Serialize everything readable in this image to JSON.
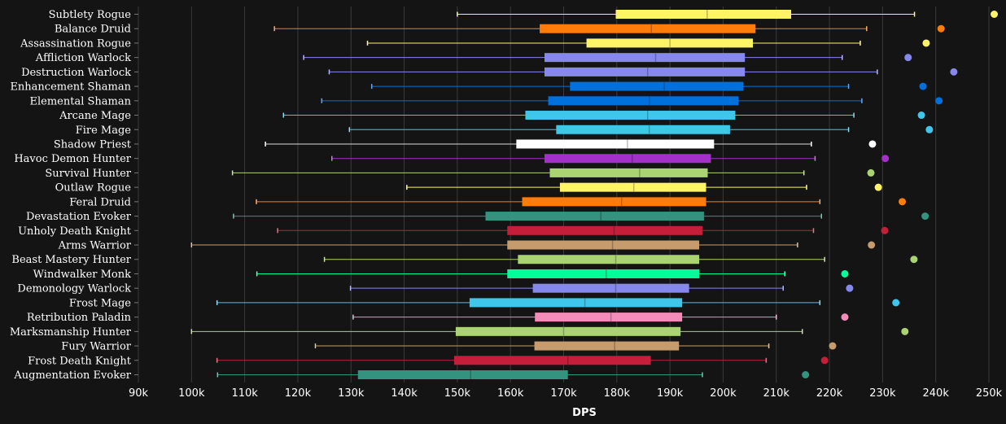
{
  "chart_data": {
    "type": "box",
    "xlabel": "DPS",
    "xlim": [
      90000,
      250000
    ],
    "x_ticks": [
      90000,
      100000,
      110000,
      120000,
      130000,
      140000,
      150000,
      160000,
      170000,
      180000,
      190000,
      200000,
      210000,
      220000,
      230000,
      240000,
      250000
    ],
    "x_tick_labels": [
      "90k",
      "100k",
      "110k",
      "120k",
      "130k",
      "140k",
      "150k",
      "160k",
      "170k",
      "180k",
      "190k",
      "200k",
      "210k",
      "220k",
      "230k",
      "240k",
      "250k"
    ],
    "grid": true,
    "series": [
      {
        "name": "Subtlety Rogue",
        "color": "#FFF468",
        "whisker_low": 150000,
        "q1": 179800,
        "median": 197000,
        "q3": 212800,
        "whisker_high": 236000,
        "outlier": 251000
      },
      {
        "name": "Balance Druid",
        "color": "#FF7C0A",
        "whisker_low": 115600,
        "q1": 165500,
        "median": 186500,
        "q3": 206100,
        "whisker_high": 227000,
        "outlier": 241000
      },
      {
        "name": "Assassination Rogue",
        "color": "#FFF468",
        "whisker_low": 133100,
        "q1": 174300,
        "median": 190000,
        "q3": 205600,
        "whisker_high": 225800,
        "outlier": 238200
      },
      {
        "name": "Affliction Warlock",
        "color": "#8788EE",
        "whisker_low": 121100,
        "q1": 166400,
        "median": 187300,
        "q3": 204100,
        "whisker_high": 222400,
        "outlier": 234800
      },
      {
        "name": "Destruction Warlock",
        "color": "#8788EE",
        "whisker_low": 125900,
        "q1": 166400,
        "median": 185800,
        "q3": 204100,
        "whisker_high": 229000,
        "outlier": 243400
      },
      {
        "name": "Enhancement Shaman",
        "color": "#0070DD",
        "whisker_low": 133900,
        "q1": 171200,
        "median": 188900,
        "q3": 203800,
        "whisker_high": 223600,
        "outlier": 237600
      },
      {
        "name": "Elemental Shaman",
        "color": "#0070DD",
        "whisker_low": 124500,
        "q1": 167100,
        "median": 186100,
        "q3": 202900,
        "whisker_high": 226100,
        "outlier": 240600
      },
      {
        "name": "Arcane Mage",
        "color": "#3FC7EB",
        "whisker_low": 117300,
        "q1": 162800,
        "median": 185800,
        "q3": 202300,
        "whisker_high": 224600,
        "outlier": 237300
      },
      {
        "name": "Fire Mage",
        "color": "#3FC7EB",
        "whisker_low": 129700,
        "q1": 168600,
        "median": 186100,
        "q3": 201300,
        "whisker_high": 223600,
        "outlier": 238800
      },
      {
        "name": "Shadow Priest",
        "color": "#FFFFFF",
        "whisker_low": 113900,
        "q1": 161100,
        "median": 182000,
        "q3": 198300,
        "whisker_high": 216600,
        "outlier": 228100
      },
      {
        "name": "Havoc Demon Hunter",
        "color": "#A330C9",
        "whisker_low": 126400,
        "q1": 166400,
        "median": 182900,
        "q3": 197700,
        "whisker_high": 217300,
        "outlier": 230500
      },
      {
        "name": "Survival Hunter",
        "color": "#AAD372",
        "whisker_low": 107700,
        "q1": 167400,
        "median": 184300,
        "q3": 197100,
        "whisker_high": 215200,
        "outlier": 227800
      },
      {
        "name": "Outlaw Rogue",
        "color": "#FFF468",
        "whisker_low": 140500,
        "q1": 169300,
        "median": 183200,
        "q3": 196800,
        "whisker_high": 215700,
        "outlier": 229200
      },
      {
        "name": "Feral Druid",
        "color": "#FF7C0A",
        "whisker_low": 112200,
        "q1": 162200,
        "median": 180900,
        "q3": 196800,
        "whisker_high": 218200,
        "outlier": 233700
      },
      {
        "name": "Devastation Evoker",
        "color": "#33937F",
        "whisker_low": 107900,
        "q1": 155300,
        "median": 177000,
        "q3": 196400,
        "whisker_high": 218500,
        "outlier": 238000
      },
      {
        "name": "Unholy Death Knight",
        "color": "#C41E3A",
        "whisker_low": 116200,
        "q1": 159400,
        "median": 179500,
        "q3": 196100,
        "whisker_high": 217000,
        "outlier": 230400
      },
      {
        "name": "Arms Warrior",
        "color": "#C69B6D",
        "whisker_low": 100000,
        "q1": 159400,
        "median": 179200,
        "q3": 195500,
        "whisker_high": 214000,
        "outlier": 227900
      },
      {
        "name": "Beast Mastery Hunter",
        "color": "#AAD372",
        "whisker_low": 125000,
        "q1": 161400,
        "median": 179800,
        "q3": 195500,
        "whisker_high": 219100,
        "outlier": 235900
      },
      {
        "name": "Windwalker Monk",
        "color": "#00FF98",
        "whisker_low": 112300,
        "q1": 159400,
        "median": 178000,
        "q3": 195500,
        "whisker_high": 211600,
        "outlier": 222900
      },
      {
        "name": "Demonology Warlock",
        "color": "#8788EE",
        "whisker_low": 129900,
        "q1": 164200,
        "median": 179800,
        "q3": 193600,
        "whisker_high": 211300,
        "outlier": 223800
      },
      {
        "name": "Frost Mage",
        "color": "#3FC7EB",
        "whisker_low": 104800,
        "q1": 152300,
        "median": 174000,
        "q3": 192300,
        "whisker_high": 218200,
        "outlier": 232500
      },
      {
        "name": "Retribution Paladin",
        "color": "#F48CBA",
        "whisker_low": 130400,
        "q1": 164600,
        "median": 178900,
        "q3": 192300,
        "whisker_high": 210000,
        "outlier": 222900
      },
      {
        "name": "Marksmanship Hunter",
        "color": "#AAD372",
        "whisker_low": 100000,
        "q1": 149700,
        "median": 170000,
        "q3": 192000,
        "whisker_high": 214900,
        "outlier": 234200
      },
      {
        "name": "Fury Warrior",
        "color": "#C69B6D",
        "whisker_low": 123300,
        "q1": 164500,
        "median": 179600,
        "q3": 191700,
        "whisker_high": 208600,
        "outlier": 220600
      },
      {
        "name": "Frost Death Knight",
        "color": "#C41E3A",
        "whisker_low": 104800,
        "q1": 149400,
        "median": 170800,
        "q3": 186400,
        "whisker_high": 208100,
        "outlier": 219100
      },
      {
        "name": "Augmentation Evoker",
        "color": "#33937F",
        "whisker_low": 104900,
        "q1": 131300,
        "median": 152500,
        "q3": 170800,
        "whisker_high": 196100,
        "outlier": 215500
      }
    ]
  }
}
